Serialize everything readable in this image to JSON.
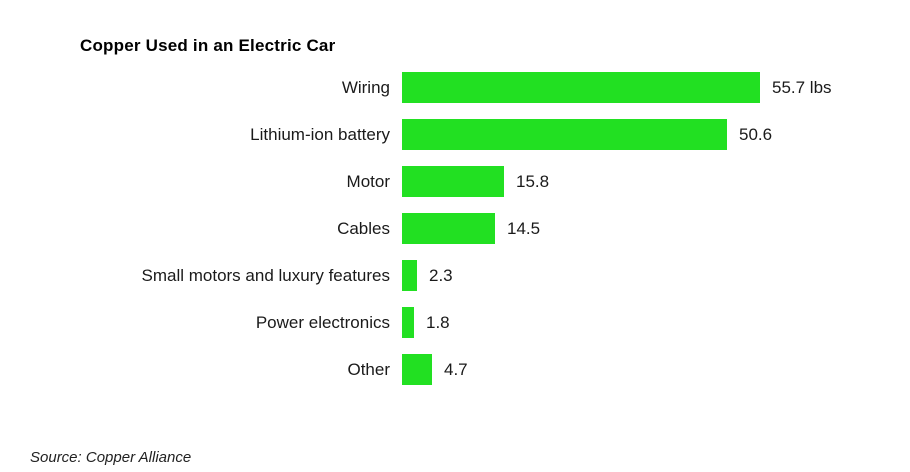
{
  "chart": {
    "title": "Copper Used in an Electric Car"
  },
  "footer": {
    "source": "Source: Copper Alliance"
  },
  "colors": {
    "bar": "#22E022",
    "title_text": "#000000",
    "label_text": "#1a1a1a",
    "source_text": "#222222",
    "background": "#ffffff"
  },
  "chart_data": {
    "type": "bar",
    "orientation": "horizontal",
    "title": "Copper Used in an Electric Car",
    "unit": "lbs",
    "categories": [
      "Wiring",
      "Lithium-ion battery",
      "Motor",
      "Cables",
      "Small motors and luxury features",
      "Power electronics",
      "Other"
    ],
    "values": [
      55.7,
      50.6,
      15.8,
      14.5,
      2.3,
      1.8,
      4.7
    ],
    "value_labels": [
      "55.7 lbs",
      "50.6",
      "15.8",
      "14.5",
      "2.3",
      "1.8",
      "4.7"
    ],
    "bar_color": "#22E022",
    "xlim": [
      0,
      58
    ],
    "grid": false,
    "legend": "none",
    "value_labels_position": "right-of-bar",
    "category_labels_position": "left-of-bar",
    "source": "Source: Copper Alliance"
  }
}
